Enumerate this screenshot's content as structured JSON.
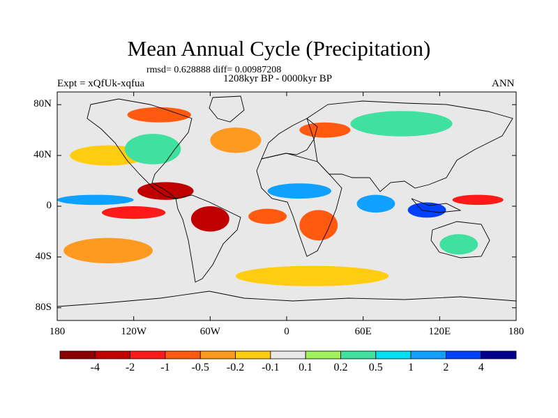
{
  "title": "Mean Annual Cycle (Precipitation)",
  "stats": "rmsd= 0.628888 diff= 0.00987208",
  "period": "1208kyr BP - 0000kyr BP",
  "experiment": "Expt = xQfUk-xqfua",
  "season": "ANN",
  "y_axis": [
    {
      "label": "80N",
      "lat": 80
    },
    {
      "label": "40N",
      "lat": 40
    },
    {
      "label": "0",
      "lat": 0
    },
    {
      "label": "40S",
      "lat": -40
    },
    {
      "label": "80S",
      "lat": -80
    }
  ],
  "x_axis": [
    {
      "label": "180",
      "lon": -180
    },
    {
      "label": "120W",
      "lon": -120
    },
    {
      "label": "60W",
      "lon": -60
    },
    {
      "label": "0",
      "lon": 0
    },
    {
      "label": "60E",
      "lon": 60
    },
    {
      "label": "120E",
      "lon": 120
    },
    {
      "label": "180",
      "lon": 180
    }
  ],
  "colorbar": {
    "colors": [
      "#8b0000",
      "#c00000",
      "#ff1a1a",
      "#ff5a10",
      "#ff9a20",
      "#ffcc10",
      "#e8e8e8",
      "#a0f060",
      "#40e0a0",
      "#00e0f0",
      "#10a0ff",
      "#0040ff",
      "#00008b"
    ],
    "labels": [
      "-4",
      "-2",
      "-1",
      "-0.5",
      "-0.2",
      "-0.1",
      "0.1",
      "0.2",
      "0.5",
      "1",
      "2",
      "4"
    ]
  },
  "map_features": [
    {
      "name": "north-pacific-band",
      "color": "#ffcc10",
      "lon": -140,
      "lat": 40,
      "rlon": 30,
      "rlat": 8
    },
    {
      "name": "north-atlantic-band",
      "color": "#ff9a20",
      "lon": -40,
      "lat": 52,
      "rlon": 20,
      "rlat": 10
    },
    {
      "name": "north-america-wet",
      "color": "#40e0a0",
      "lon": -105,
      "lat": 45,
      "rlon": 22,
      "rlat": 12
    },
    {
      "name": "arctic-drying",
      "color": "#ff5a10",
      "lon": -100,
      "lat": 72,
      "rlon": 25,
      "rlat": 6
    },
    {
      "name": "siberia-wet",
      "color": "#40e0a0",
      "lon": 90,
      "lat": 65,
      "rlon": 40,
      "rlat": 10
    },
    {
      "name": "europe-dry",
      "color": "#ff5a10",
      "lon": 30,
      "lat": 60,
      "rlon": 20,
      "rlat": 6
    },
    {
      "name": "central-america-dry",
      "color": "#c00000",
      "lon": -95,
      "lat": 12,
      "rlon": 22,
      "rlat": 7
    },
    {
      "name": "west-pacific-itcz-wet",
      "color": "#10a0ff",
      "lon": -150,
      "lat": 5,
      "rlon": 30,
      "rlat": 4
    },
    {
      "name": "east-pacific-dry",
      "color": "#ff1a1a",
      "lon": -120,
      "lat": -5,
      "rlon": 25,
      "rlat": 5
    },
    {
      "name": "sahel-wet",
      "color": "#10a0ff",
      "lon": 10,
      "lat": 12,
      "rlon": 25,
      "rlat": 6
    },
    {
      "name": "amazon-dry",
      "color": "#c00000",
      "lon": -60,
      "lat": -10,
      "rlon": 15,
      "rlat": 10
    },
    {
      "name": "south-atlantic-dry",
      "color": "#ff5a10",
      "lon": -15,
      "lat": -8,
      "rlon": 15,
      "rlat": 6
    },
    {
      "name": "southern-africa-dry",
      "color": "#ff5a10",
      "lon": 25,
      "lat": -15,
      "rlon": 15,
      "rlat": 12
    },
    {
      "name": "indian-ocean-wet",
      "color": "#10a0ff",
      "lon": 70,
      "lat": 2,
      "rlon": 15,
      "rlat": 7
    },
    {
      "name": "maritime-continent-wet",
      "color": "#0040ff",
      "lon": 110,
      "lat": -3,
      "rlon": 15,
      "rlat": 6
    },
    {
      "name": "west-pacific-dry",
      "color": "#ff1a1a",
      "lon": 150,
      "lat": 5,
      "rlon": 20,
      "rlat": 4
    },
    {
      "name": "south-pacific-dry",
      "color": "#ff9a20",
      "lon": -140,
      "lat": -35,
      "rlon": 35,
      "rlat": 10
    },
    {
      "name": "southern-ocean-dry",
      "color": "#ffcc10",
      "lon": 20,
      "lat": -55,
      "rlon": 60,
      "rlat": 8
    },
    {
      "name": "australia-wet",
      "color": "#40e0a0",
      "lon": 135,
      "lat": -30,
      "rlon": 15,
      "rlat": 8
    }
  ]
}
